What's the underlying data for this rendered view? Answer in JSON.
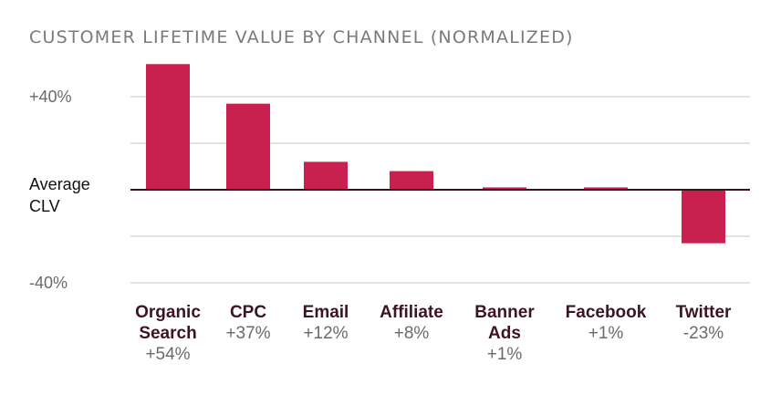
{
  "chart_data": {
    "type": "bar",
    "title": "CUSTOMER LIFETIME VALUE BY CHANNEL (NORMALIZED)",
    "categories": [
      "Organic Search",
      "CPC",
      "Email",
      "Affiliate",
      "Banner Ads",
      "Facebook",
      "Twitter"
    ],
    "category_lines": [
      [
        "Organic",
        "Search"
      ],
      [
        "CPC"
      ],
      [
        "Email"
      ],
      [
        "Affiliate"
      ],
      [
        "Banner",
        "Ads"
      ],
      [
        "Facebook"
      ],
      [
        "Twitter"
      ]
    ],
    "values": [
      54,
      37,
      12,
      8,
      1,
      1,
      -23
    ],
    "value_labels": [
      "+54%",
      "+37%",
      "+12%",
      "+8%",
      "+1%",
      "+1%",
      "-23%"
    ],
    "y_ticks": [
      {
        "value": 40,
        "label": "+40%"
      },
      {
        "value": -40,
        "label": "-40%"
      }
    ],
    "zero_label_lines": [
      "Average",
      "CLV"
    ],
    "ylim": [
      -40,
      40
    ],
    "grid": true,
    "bar_color": "#c8214f",
    "grid_color": "#d9d9d9",
    "zero_line_color": "#3a0f1d"
  }
}
